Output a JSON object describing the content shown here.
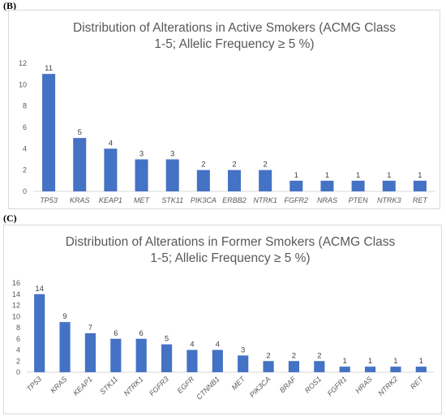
{
  "panels": [
    {
      "label": "(B)"
    },
    {
      "label": "(C)"
    }
  ],
  "chart_data": [
    {
      "type": "bar",
      "title_lines": [
        "Distribution of Alterations in Active Smokers (ACMG Class",
        "1-5; Allelic Frequency ≥ 5 %)"
      ],
      "categories": [
        "TP53",
        "KRAS",
        "KEAP1",
        "MET",
        "STK11",
        "PIK3CA",
        "ERBB2",
        "NTRK1",
        "FGFR2",
        "NRAS",
        "PTEN",
        "NTRK3",
        "RET"
      ],
      "values": [
        11,
        5,
        4,
        3,
        3,
        2,
        2,
        2,
        1,
        1,
        1,
        1,
        1
      ],
      "ylim": [
        0,
        12
      ],
      "yticks": [
        0,
        2,
        4,
        6,
        8,
        10,
        12
      ],
      "grid": false,
      "legend": "none",
      "bar_color": "#4472c4",
      "category_label_rotation": 0
    },
    {
      "type": "bar",
      "title_lines": [
        "Distribution of Alterations in Former Smokers (ACMG Class",
        "1-5; Allelic Frequency ≥ 5 %)"
      ],
      "categories": [
        "TP53",
        "KRAS",
        "KEAP1",
        "STK11",
        "NTRK1",
        "FGFR3",
        "EGFR",
        "CTNNB1",
        "MET",
        "PIK3CA",
        "BRAF",
        "ROS1",
        "FGFR1",
        "HRAS",
        "NTRK2",
        "RET"
      ],
      "values": [
        14,
        9,
        7,
        6,
        6,
        5,
        4,
        4,
        3,
        2,
        2,
        2,
        1,
        1,
        1,
        1
      ],
      "ylim": [
        0,
        16
      ],
      "yticks": [
        0,
        2,
        4,
        6,
        8,
        10,
        12,
        14,
        16
      ],
      "grid": false,
      "legend": "none",
      "bar_color": "#4472c4",
      "category_label_rotation": -45
    }
  ]
}
